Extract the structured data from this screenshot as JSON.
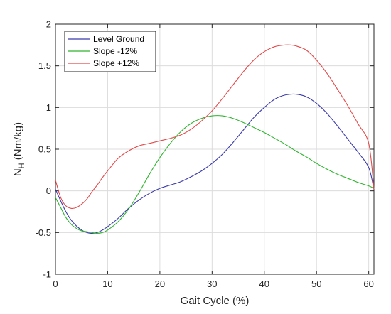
{
  "chart_data": {
    "type": "line",
    "title": "",
    "xlabel": "Gait Cycle (%)",
    "ylabel_main": "N",
    "ylabel_sub": "H",
    "ylabel_unit": " (Nm/kg)",
    "xlim": [
      0,
      61
    ],
    "ylim": [
      -1,
      2
    ],
    "xticks": [
      0,
      10,
      20,
      30,
      40,
      50,
      60
    ],
    "yticks": [
      -1,
      -0.5,
      0,
      0.5,
      1,
      1.5,
      2
    ],
    "xtick_labels": [
      "0",
      "10",
      "20",
      "30",
      "40",
      "50",
      "60"
    ],
    "ytick_labels": [
      "-1",
      "-0.5",
      "0",
      "0.5",
      "1",
      "1.5",
      "2"
    ],
    "grid": true,
    "legend_position": "top-left",
    "series": [
      {
        "name": "Level Ground",
        "color": "#3b3bad",
        "x": [
          0,
          1,
          2,
          3,
          4,
          5,
          6,
          7,
          8,
          9,
          10,
          12,
          14,
          16,
          18,
          20,
          22,
          24,
          26,
          28,
          30,
          32,
          34,
          36,
          38,
          40,
          42,
          44,
          46,
          48,
          50,
          52,
          54,
          56,
          58,
          60,
          61
        ],
        "y": [
          0.02,
          -0.12,
          -0.25,
          -0.35,
          -0.42,
          -0.47,
          -0.5,
          -0.51,
          -0.5,
          -0.47,
          -0.43,
          -0.33,
          -0.21,
          -0.11,
          -0.03,
          0.03,
          0.07,
          0.11,
          0.17,
          0.24,
          0.33,
          0.44,
          0.58,
          0.73,
          0.88,
          1.0,
          1.1,
          1.15,
          1.16,
          1.13,
          1.05,
          0.93,
          0.78,
          0.62,
          0.46,
          0.28,
          0.02
        ]
      },
      {
        "name": "Slope -12%",
        "color": "#2db52d",
        "x": [
          0,
          1,
          2,
          3,
          4,
          5,
          6,
          7,
          8,
          9,
          10,
          12,
          14,
          16,
          18,
          20,
          22,
          24,
          26,
          28,
          30,
          32,
          34,
          36,
          38,
          40,
          42,
          44,
          46,
          48,
          50,
          52,
          54,
          56,
          58,
          60,
          61
        ],
        "y": [
          -0.08,
          -0.2,
          -0.32,
          -0.4,
          -0.45,
          -0.48,
          -0.49,
          -0.5,
          -0.51,
          -0.5,
          -0.47,
          -0.37,
          -0.22,
          -0.02,
          0.2,
          0.4,
          0.57,
          0.71,
          0.81,
          0.87,
          0.9,
          0.9,
          0.87,
          0.82,
          0.76,
          0.7,
          0.63,
          0.56,
          0.48,
          0.41,
          0.33,
          0.26,
          0.2,
          0.15,
          0.1,
          0.06,
          0.03
        ]
      },
      {
        "name": "Slope +12%",
        "color": "#e34a4a",
        "x": [
          0,
          1,
          2,
          3,
          4,
          5,
          6,
          7,
          8,
          9,
          10,
          12,
          14,
          16,
          18,
          20,
          22,
          24,
          26,
          28,
          30,
          32,
          34,
          36,
          38,
          40,
          42,
          44,
          45,
          46,
          48,
          50,
          52,
          54,
          56,
          58,
          60,
          61
        ],
        "y": [
          0.13,
          -0.08,
          -0.18,
          -0.21,
          -0.2,
          -0.16,
          -0.1,
          -0.01,
          0.07,
          0.16,
          0.24,
          0.39,
          0.48,
          0.54,
          0.57,
          0.6,
          0.63,
          0.67,
          0.74,
          0.84,
          0.96,
          1.11,
          1.27,
          1.43,
          1.57,
          1.67,
          1.73,
          1.75,
          1.75,
          1.74,
          1.69,
          1.57,
          1.41,
          1.22,
          1.02,
          0.8,
          0.57,
          0.02
        ]
      }
    ]
  }
}
